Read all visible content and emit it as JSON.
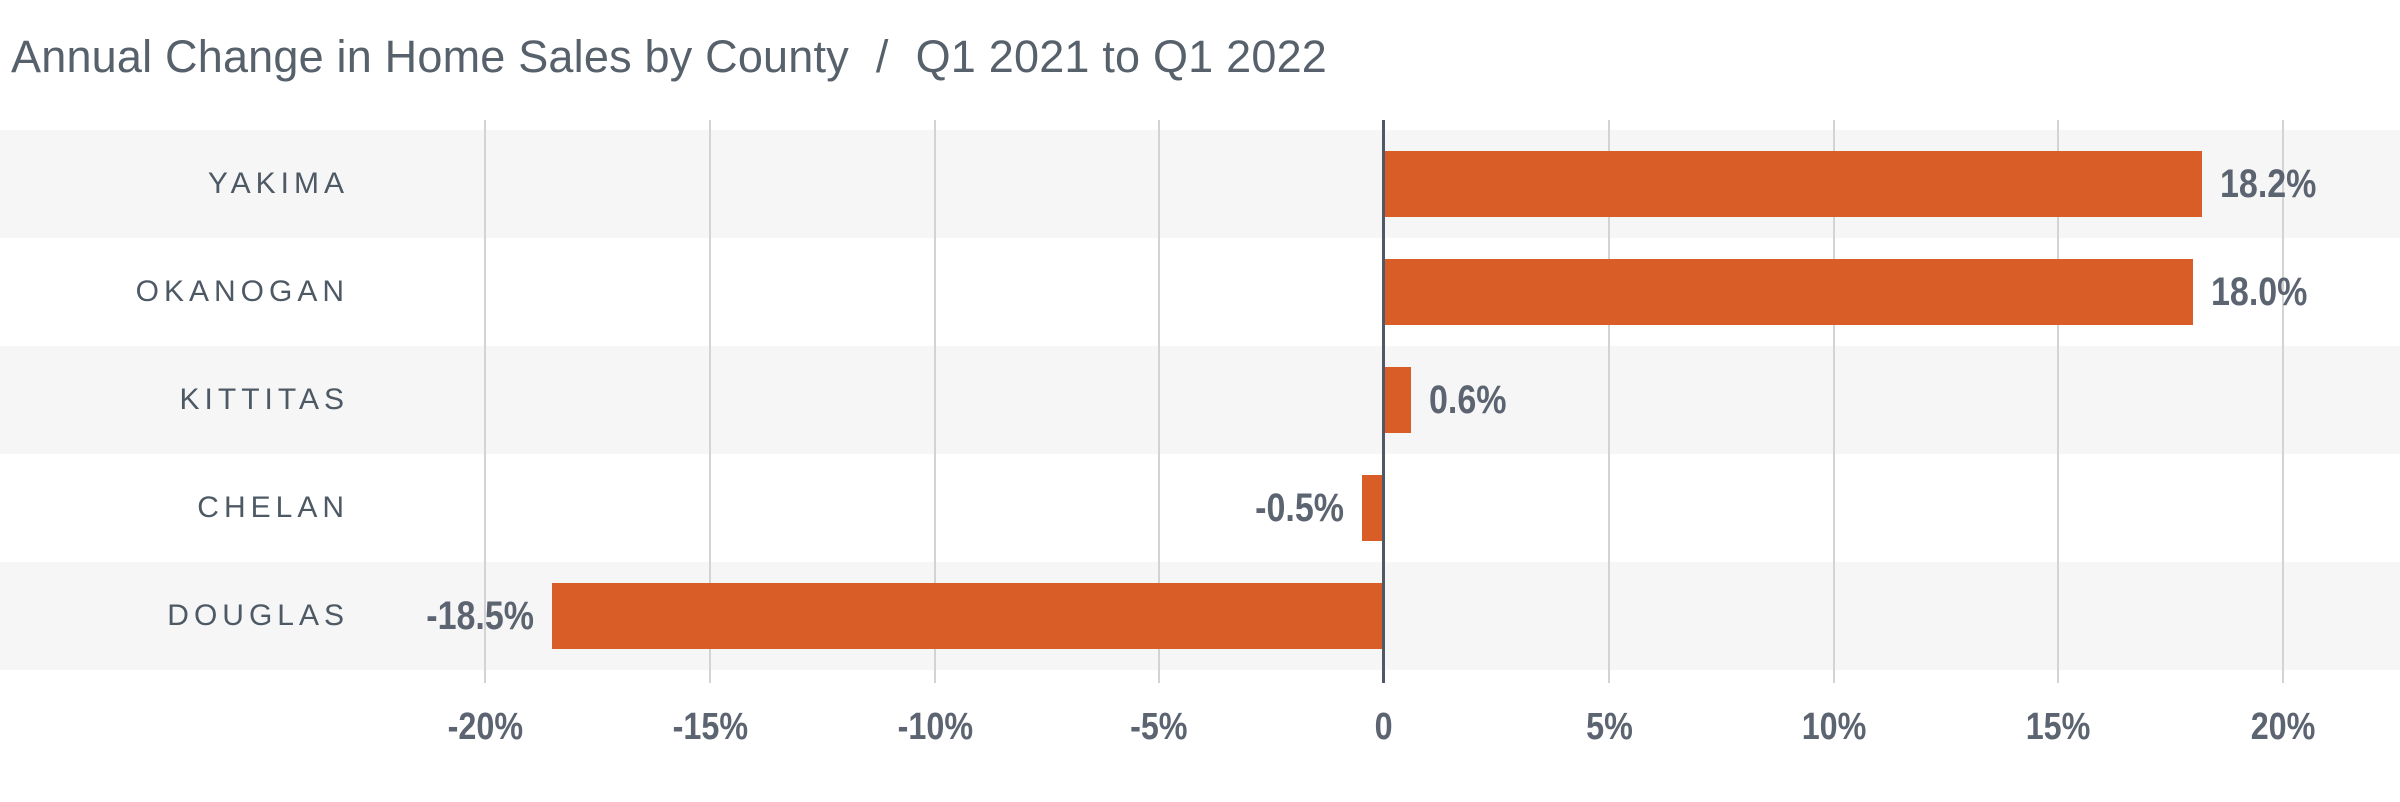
{
  "title": {
    "main": "Annual Change in Home Sales by County",
    "separator": "/",
    "period": "Q1 2021 to Q1 2022"
  },
  "chart_data": {
    "type": "bar",
    "orientation": "horizontal",
    "title": "Annual Change in Home Sales by County / Q1 2021 to Q1 2022",
    "xlabel": "",
    "ylabel": "",
    "categories": [
      "YAKIMA",
      "OKANOGAN",
      "KITTITAS",
      "CHELAN",
      "DOUGLAS"
    ],
    "values": [
      18.2,
      18.0,
      0.6,
      -0.5,
      -18.5
    ],
    "value_labels": [
      "18.2%",
      "18.0%",
      "0.6%",
      "-0.5%",
      "-18.5%"
    ],
    "x_axis": {
      "min": -20,
      "max": 20,
      "tick_values": [
        -20,
        -15,
        -10,
        -5,
        0,
        5,
        10,
        15,
        20
      ],
      "tick_labels": [
        "-20%",
        "-15%",
        "-10%",
        "-5%",
        "0",
        "5%",
        "10%",
        "15%",
        "20%"
      ]
    },
    "grid": true,
    "legend": false,
    "colors": {
      "bar": "#d85d26",
      "row_band": "#f6f6f6",
      "row_band_alt": "#ffffff",
      "gridline": "#d3d3d3",
      "zero_line": "#4e5965",
      "title_text": "#57616b",
      "category_text": "#4d5964",
      "value_text": "#5b6470"
    }
  }
}
